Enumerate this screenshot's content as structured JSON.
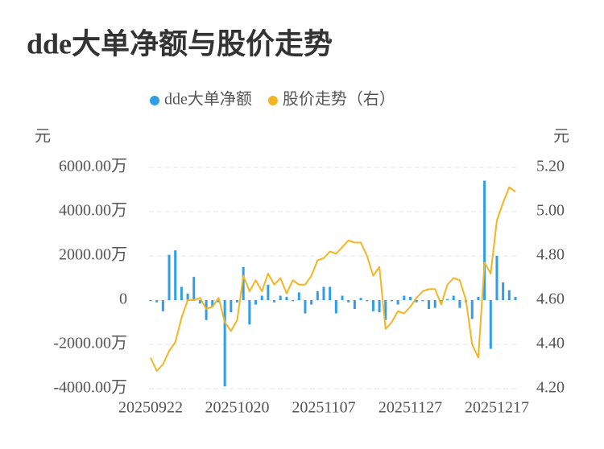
{
  "chart_data": {
    "type": "bar",
    "title": "dde大单净额与股价走势",
    "y_label": "元",
    "y2_label": "元",
    "categories": [
      "20250922",
      null,
      null,
      null,
      null,
      null,
      null,
      null,
      null,
      null,
      null,
      null,
      null,
      null,
      "20251020",
      null,
      null,
      null,
      null,
      null,
      null,
      null,
      null,
      null,
      null,
      null,
      null,
      null,
      "20251107",
      null,
      null,
      null,
      null,
      null,
      null,
      null,
      null,
      null,
      null,
      null,
      null,
      null,
      "20251127",
      null,
      null,
      null,
      null,
      null,
      null,
      null,
      null,
      null,
      null,
      null,
      null,
      null,
      "20251217",
      null,
      null,
      null
    ],
    "series": [
      {
        "name": "dde大单净额",
        "type": "bar",
        "color": "#2f9ee6",
        "values": [
          -50,
          -100,
          -500,
          2050,
          2250,
          600,
          300,
          1050,
          -150,
          -900,
          -300,
          -100,
          -3900,
          -550,
          -100,
          1500,
          -1100,
          -200,
          200,
          700,
          -100,
          200,
          150,
          -50,
          350,
          -600,
          -200,
          400,
          600,
          600,
          -600,
          200,
          -100,
          -400,
          100,
          -50,
          -500,
          -550,
          -900,
          -50,
          -200,
          200,
          150,
          -100,
          -50,
          -400,
          -350,
          -100,
          50,
          200,
          -350,
          -100,
          -850,
          150,
          5400,
          -2200,
          2000,
          800,
          450,
          150
        ]
      },
      {
        "name": "股价走势（右）",
        "type": "line",
        "axis": "y2",
        "color": "#f5b521",
        "values": [
          4.34,
          4.28,
          4.31,
          4.37,
          4.41,
          4.52,
          4.6,
          4.6,
          4.61,
          4.56,
          4.57,
          4.61,
          4.5,
          4.46,
          4.51,
          4.71,
          4.64,
          4.69,
          4.64,
          4.72,
          4.67,
          4.7,
          4.63,
          4.69,
          4.67,
          4.67,
          4.71,
          4.78,
          4.79,
          4.82,
          4.81,
          4.84,
          4.87,
          4.86,
          4.86,
          4.8,
          4.71,
          4.75,
          4.47,
          4.5,
          4.55,
          4.54,
          4.57,
          4.61,
          4.64,
          4.65,
          4.65,
          4.58,
          4.67,
          4.7,
          4.69,
          4.6,
          4.4,
          4.34,
          4.77,
          4.72,
          4.96,
          5.04,
          5.11,
          5.09
        ]
      }
    ],
    "ylim": [
      -4000,
      6000
    ],
    "yticks": [
      {
        "value": -4000,
        "label": "-4000.00万"
      },
      {
        "value": -2000,
        "label": "-2000.00万"
      },
      0,
      {
        "value": 2000,
        "label": "2000.00万"
      },
      {
        "value": 4000,
        "label": "4000.00万"
      },
      {
        "value": 6000,
        "label": "6000.00万"
      }
    ],
    "y2lim": [
      4.2,
      5.2
    ],
    "y2ticks": [
      {
        "value": 4.2,
        "label": "4.20"
      },
      {
        "value": 4.4,
        "label": "4.40"
      },
      {
        "value": 4.6,
        "label": "4.60"
      },
      {
        "value": 4.8,
        "label": "4.80"
      },
      {
        "value": 5.0,
        "label": "5.00"
      },
      {
        "value": 5.2,
        "label": "5.20"
      }
    ],
    "grid": true
  }
}
